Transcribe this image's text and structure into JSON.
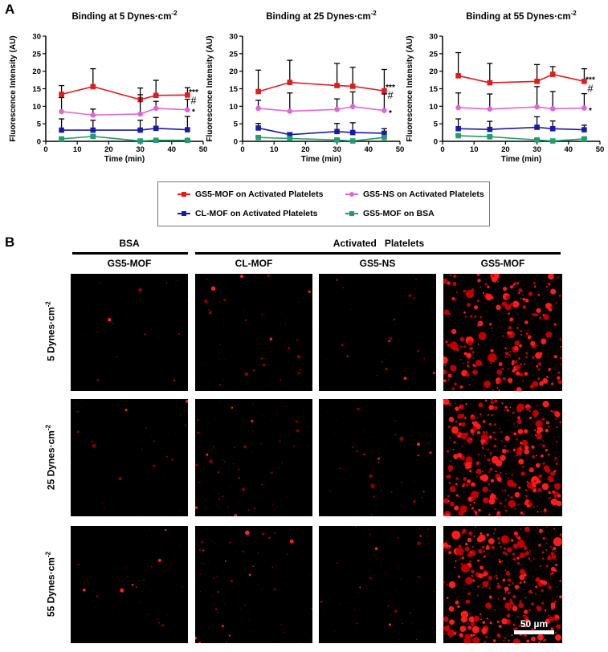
{
  "panel_a_label": "A",
  "panel_b_label": "B",
  "colors": {
    "gs5_mof_platelets": "#e41a1c",
    "gs5_ns_platelets": "#e066d6",
    "cl_mof_platelets": "#1a1aaa",
    "gs5_mof_bsa": "#1f9e6e"
  },
  "chart_data": [
    {
      "type": "line",
      "title": "Binding at 5 Dynes·cm",
      "title_exponent": "-2",
      "xlabel": "Time (min)",
      "ylabel": "Fluorescence Intensity (AU)",
      "xlim": [
        0,
        50
      ],
      "ylim": [
        0,
        30
      ],
      "xticks": [
        0,
        10,
        20,
        30,
        40,
        50
      ],
      "yticks": [
        0,
        5,
        10,
        15,
        20,
        25,
        30
      ],
      "x": [
        5,
        15,
        30,
        35,
        45
      ],
      "grid": false,
      "error_bars": "upper SD",
      "series": [
        {
          "name": "GS5-MOF on Activated Platelets",
          "marker": "square",
          "values": [
            13.4,
            15.6,
            11.9,
            13.1,
            13.2
          ],
          "errors": [
            2.5,
            5.1,
            3.3,
            4.3,
            2.1
          ]
        },
        {
          "name": "GS5-NS on Activated Platelets",
          "marker": "circle",
          "values": [
            8.5,
            7.5,
            7.8,
            9.4,
            9.0
          ],
          "errors": [
            4.0,
            1.7,
            5.5,
            2.0,
            3.0
          ]
        },
        {
          "name": "CL-MOF on Activated Platelets",
          "marker": "square",
          "values": [
            3.2,
            3.2,
            3.2,
            3.7,
            3.3
          ],
          "errors": [
            3.2,
            2.8,
            2.8,
            3.1,
            3.8
          ]
        },
        {
          "name": "GS5-MOF on BSA",
          "marker": "square",
          "values": [
            0.7,
            1.4,
            0.1,
            0.3,
            0.3
          ],
          "errors": [
            0.3,
            0.3,
            0.2,
            0.2,
            0.2
          ]
        }
      ],
      "annotations": [
        {
          "text": "***",
          "y": 14.2
        },
        {
          "text": "#",
          "y": 11.6
        },
        {
          "text": "*",
          "y": 8.6
        }
      ]
    },
    {
      "type": "line",
      "title": "Binding at 25 Dynes·cm",
      "title_exponent": "-2",
      "xlabel": "Time (min)",
      "ylabel": "Fluorescence Intensity (AU)",
      "xlim": [
        0,
        50
      ],
      "ylim": [
        0,
        30
      ],
      "xticks": [
        0,
        10,
        20,
        30,
        40,
        50
      ],
      "yticks": [
        0,
        5,
        10,
        15,
        20,
        25,
        30
      ],
      "x": [
        5,
        15,
        30,
        35,
        45
      ],
      "grid": false,
      "error_bars": "upper SD",
      "series": [
        {
          "name": "GS5-MOF on Activated Platelets",
          "marker": "square",
          "values": [
            14.2,
            16.8,
            15.9,
            15.7,
            14.4
          ],
          "errors": [
            6.1,
            6.3,
            6.3,
            5.4,
            6.1
          ]
        },
        {
          "name": "GS5-NS on Activated Platelets",
          "marker": "circle",
          "values": [
            9.4,
            8.6,
            9.1,
            9.9,
            8.8
          ],
          "errors": [
            2.3,
            5.2,
            3.0,
            4.2,
            4.7
          ]
        },
        {
          "name": "CL-MOF on Activated Platelets",
          "marker": "square",
          "values": [
            3.8,
            1.9,
            2.8,
            2.5,
            2.3
          ],
          "errors": [
            1.3,
            0.5,
            2.3,
            2.8,
            1.3
          ]
        },
        {
          "name": "GS5-MOF on BSA",
          "marker": "square",
          "values": [
            1.1,
            0.8,
            0.4,
            0.1,
            1.1
          ],
          "errors": [
            0.3,
            0.3,
            0.3,
            0.2,
            0.3
          ]
        }
      ],
      "annotations": [
        {
          "text": "***",
          "y": 15.6
        },
        {
          "text": "#",
          "y": 13.0
        },
        {
          "text": "*",
          "y": 8.3
        }
      ]
    },
    {
      "type": "line",
      "title": "Binding at 55 Dynes·cm",
      "title_exponent": "-2",
      "xlabel": "Time (min)",
      "ylabel": "Fluorescence Intensity (AU)",
      "xlim": [
        0,
        50
      ],
      "ylim": [
        0,
        30
      ],
      "xticks": [
        0,
        10,
        20,
        30,
        40,
        50
      ],
      "yticks": [
        0,
        5,
        10,
        15,
        20,
        25,
        30
      ],
      "x": [
        5,
        15,
        30,
        35,
        45
      ],
      "grid": false,
      "error_bars": "upper SD",
      "series": [
        {
          "name": "GS5-MOF on Activated Platelets",
          "marker": "square",
          "values": [
            18.7,
            16.7,
            17.1,
            19.1,
            17.1
          ],
          "errors": [
            6.6,
            5.5,
            4.8,
            2.2,
            3.6
          ]
        },
        {
          "name": "GS5-NS on Activated Platelets",
          "marker": "circle",
          "values": [
            9.6,
            9.2,
            9.8,
            9.3,
            9.5
          ],
          "errors": [
            4.2,
            4.3,
            5.8,
            4.9,
            4.1
          ]
        },
        {
          "name": "CL-MOF on Activated Platelets",
          "marker": "square",
          "values": [
            3.6,
            3.4,
            4.0,
            3.6,
            3.3
          ],
          "errors": [
            2.8,
            2.3,
            3.0,
            2.2,
            1.3
          ]
        },
        {
          "name": "GS5-MOF on BSA",
          "marker": "square",
          "values": [
            1.6,
            1.3,
            0.4,
            0.1,
            0.7
          ],
          "errors": [
            0.3,
            0.3,
            0.3,
            0.2,
            0.3
          ]
        }
      ],
      "annotations": [
        {
          "text": "***",
          "y": 17.8
        },
        {
          "text": "#",
          "y": 15.0
        },
        {
          "text": "*",
          "y": 8.9
        }
      ]
    }
  ],
  "legend": {
    "position": "below charts",
    "items": [
      {
        "label": "GS5-MOF on Activated Platelets",
        "marker": "square"
      },
      {
        "label": "GS5-NS on Activated Platelets",
        "marker": "circle"
      },
      {
        "label": "CL-MOF on Activated Platelets",
        "marker": "square"
      },
      {
        "label": "GS5-MOF on BSA",
        "marker": "square"
      }
    ]
  },
  "panel_b": {
    "group_headers": [
      "BSA",
      "Activated   Platelets"
    ],
    "columns": [
      "GS5-MOF",
      "CL-MOF",
      "GS5-NS",
      "GS5-MOF"
    ],
    "rows": [
      {
        "label": "5 Dynes·cm",
        "exponent": "-2"
      },
      {
        "label": "25 Dynes·cm",
        "exponent": "-2"
      },
      {
        "label": "55 Dynes·cm",
        "exponent": "-2"
      }
    ],
    "scale_bar": "50 µm"
  }
}
